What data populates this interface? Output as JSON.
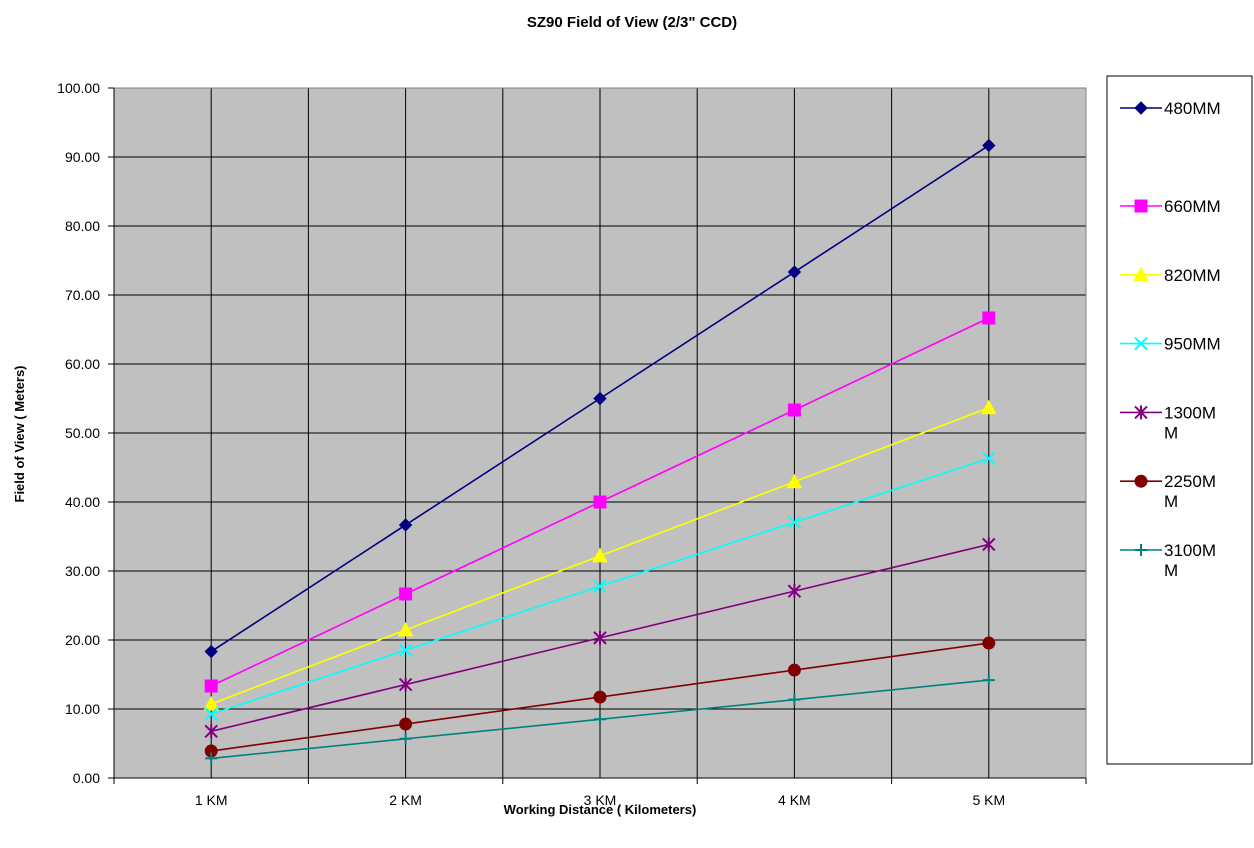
{
  "chart_data": {
    "type": "line",
    "title": "SZ90 Field of View (2/3\" CCD)",
    "xlabel": "Working Distance ( Kilometers)",
    "ylabel": "Field of View ( Meters)",
    "categories": [
      "1 KM",
      "2 KM",
      "3 KM",
      "4 KM",
      "5 KM"
    ],
    "ylim": [
      0,
      100
    ],
    "yticks": [
      "0.00",
      "10.00",
      "20.00",
      "30.00",
      "40.00",
      "50.00",
      "60.00",
      "70.00",
      "80.00",
      "90.00",
      "100.00"
    ],
    "grid": true,
    "plot_background": "#c0c0c0",
    "legend_position": "right",
    "series": [
      {
        "name": "480MM",
        "legend_lines": [
          "480MM"
        ],
        "color": "#000080",
        "marker": "diamond",
        "values": [
          18.33,
          36.67,
          55.0,
          73.33,
          91.67
        ]
      },
      {
        "name": "660MM",
        "legend_lines": [
          "660MM"
        ],
        "color": "#ff00ff",
        "marker": "square",
        "values": [
          13.33,
          26.67,
          40.0,
          53.33,
          66.67
        ]
      },
      {
        "name": "820MM",
        "legend_lines": [
          "820MM"
        ],
        "color": "#ffff00",
        "marker": "triangle",
        "values": [
          10.73,
          21.46,
          32.2,
          42.93,
          53.66
        ]
      },
      {
        "name": "950MM",
        "legend_lines": [
          "950MM"
        ],
        "color": "#00ffff",
        "marker": "x",
        "values": [
          9.26,
          18.53,
          27.79,
          37.05,
          46.32
        ]
      },
      {
        "name": "1300MM",
        "legend_lines": [
          "1300M",
          "M"
        ],
        "color": "#800080",
        "marker": "asterisk",
        "values": [
          6.77,
          13.54,
          20.31,
          27.08,
          33.85
        ]
      },
      {
        "name": "2250MM",
        "legend_lines": [
          "2250M",
          "M"
        ],
        "color": "#800000",
        "marker": "circle",
        "values": [
          3.91,
          7.82,
          11.73,
          15.64,
          19.56
        ]
      },
      {
        "name": "3100MM",
        "legend_lines": [
          "3100M",
          "M"
        ],
        "color": "#008080",
        "marker": "plus",
        "values": [
          2.84,
          5.68,
          8.51,
          11.35,
          14.19
        ]
      }
    ]
  }
}
